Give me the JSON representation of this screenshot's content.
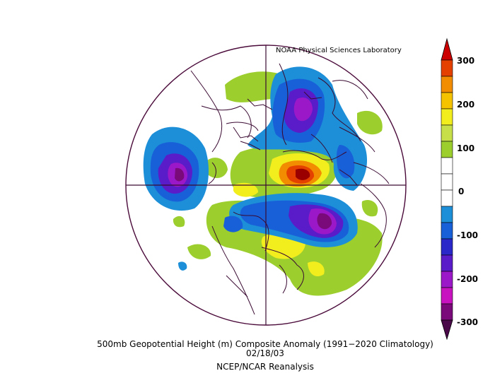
{
  "credit": "NOAA Physical Sciences Laboratory",
  "title": "500mb Geopotential Height (m) Composite Anomaly (1991−2020 Climatology)",
  "date": "02/18/03",
  "source": "NCEP/NCAR Reanalysis",
  "colorbar": {
    "labels": [
      "300",
      "200",
      "100",
      "0",
      "-100",
      "-200",
      "-300"
    ],
    "colors": [
      "#9a0000",
      "#e44000",
      "#f28c00",
      "#f6c300",
      "#f2ee1e",
      "#c7e04a",
      "#9ccf2e",
      "#ffffff",
      "#ffffff",
      "#1c8fd8",
      "#1860d8",
      "#2a28c8",
      "#5a1cc8",
      "#9a18c8",
      "#c814c0",
      "#7a0a7a"
    ],
    "top_arrow_color": "#cc0000",
    "bottom_arrow_color": "#4a0a4a"
  },
  "map": {
    "projection": "north polar stereographic",
    "border_color": "#4a0a3a",
    "coast_color": "#3a0a32"
  }
}
